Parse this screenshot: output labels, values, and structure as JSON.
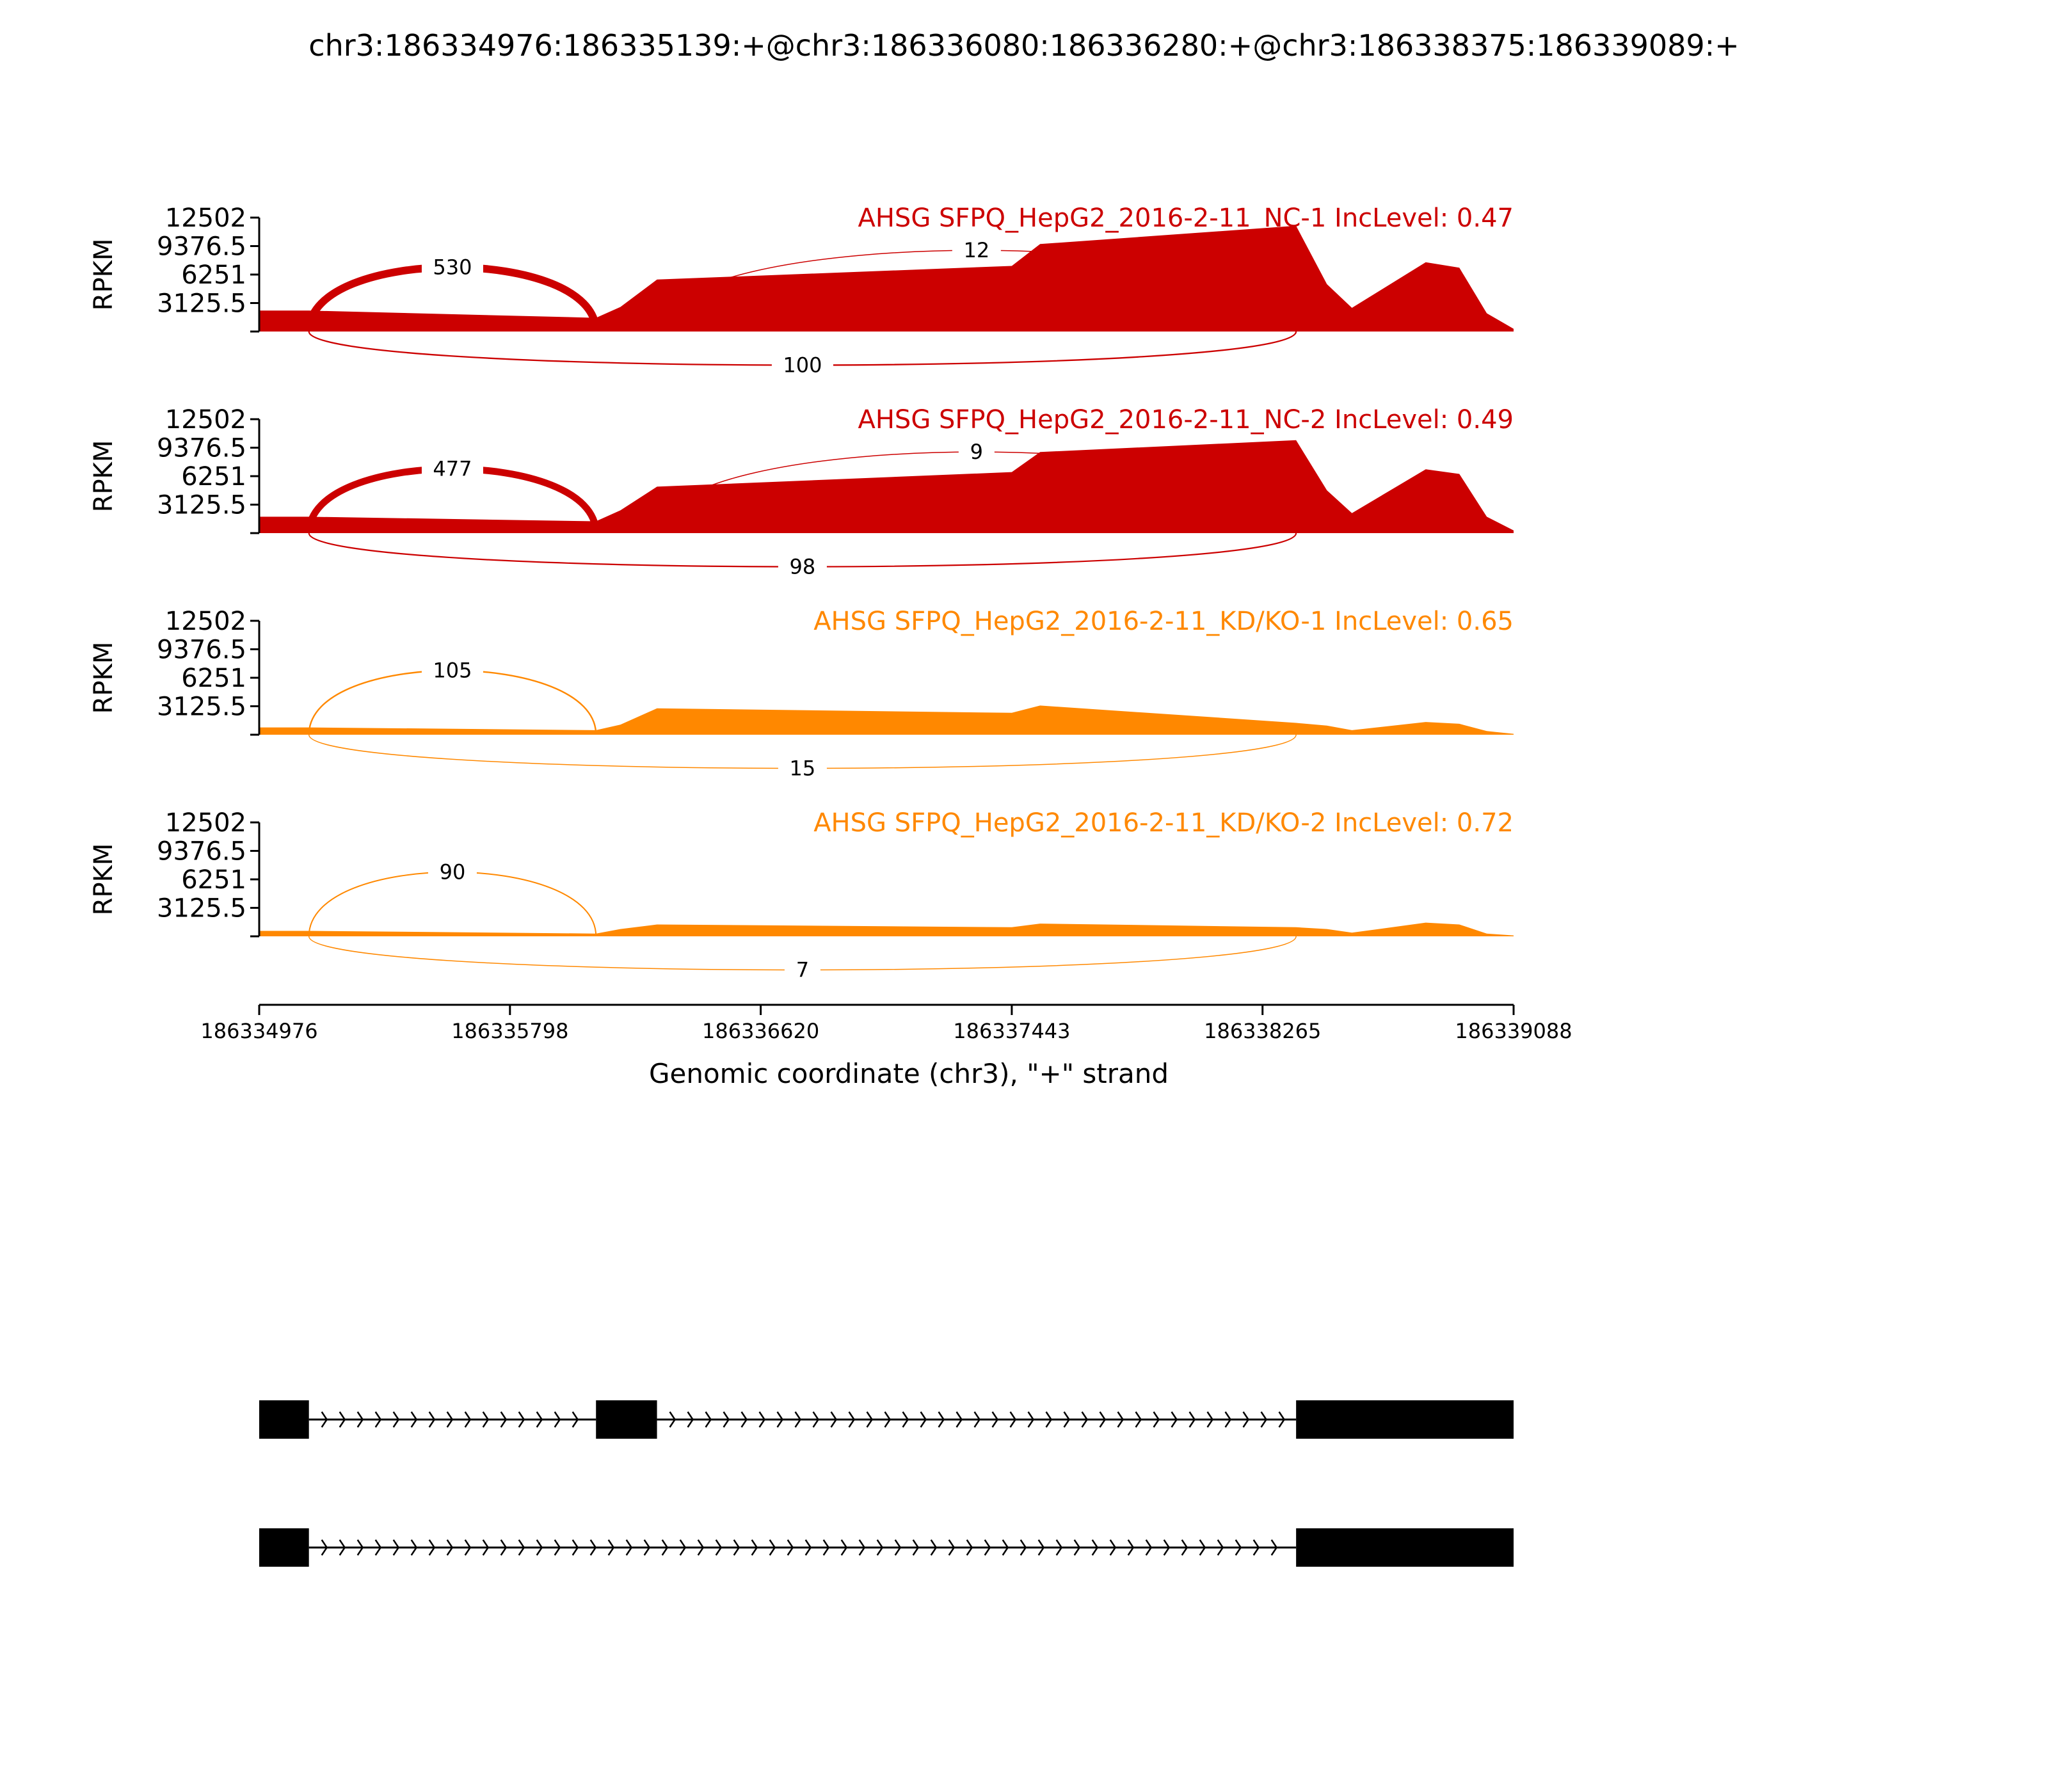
{
  "title": "chr3:186334976:186335139:+@chr3:186336080:186336280:+@chr3:186338375:186339089:+",
  "colors": {
    "nc": "#cc0000",
    "kd": "#ff8800",
    "axis": "#000000",
    "gene": "#000000"
  },
  "chart_data": {
    "type": "sashimi",
    "title": "chr3:186334976:186335139:+@chr3:186336080:186336280:+@chr3:186338375:186339089:+",
    "xlabel": "Genomic coordinate (chr3), \"+\" strand",
    "ylabel": "RPKM",
    "xlim": [
      186334976,
      186339088
    ],
    "xticks": [
      186334976,
      186335798,
      186336620,
      186337443,
      186338265,
      186339088
    ],
    "xtick_labels": [
      "186334976",
      "186335798",
      "186336620",
      "186337443",
      "186338265",
      "186339088"
    ],
    "ylim": [
      0,
      12502
    ],
    "yticks": [
      3125.5,
      6251,
      9376.5,
      12502
    ],
    "ytick_labels": [
      "3125.5",
      "6251",
      "9376.5",
      "12502"
    ],
    "tracks": [
      {
        "label": "AHSG SFPQ_HepG2_2016-2-11_NC-1 IncLevel: 0.47",
        "group": "nc",
        "coverage": [
          [
            186334976,
            2300
          ],
          [
            186335139,
            2300
          ],
          [
            186336080,
            1500
          ],
          [
            186336160,
            2700
          ],
          [
            186336280,
            5700
          ],
          [
            186337443,
            7200
          ],
          [
            186337536,
            9600
          ],
          [
            186338375,
            11600
          ],
          [
            186338476,
            5200
          ],
          [
            186338558,
            2600
          ],
          [
            186338800,
            7600
          ],
          [
            186338910,
            7000
          ],
          [
            186339000,
            2000
          ],
          [
            186339088,
            300
          ]
        ],
        "junctions": [
          {
            "start": 186335139,
            "end": 186336080,
            "count": 530,
            "side": "above"
          },
          {
            "start": 186336280,
            "end": 186338375,
            "count": 12,
            "side": "above"
          },
          {
            "start": 186335139,
            "end": 186338375,
            "count": 100,
            "side": "below"
          }
        ]
      },
      {
        "label": "AHSG SFPQ_HepG2_2016-2-11_NC-2 IncLevel: 0.49",
        "group": "nc",
        "coverage": [
          [
            186334976,
            1800
          ],
          [
            186335139,
            1800
          ],
          [
            186336080,
            1300
          ],
          [
            186336160,
            2500
          ],
          [
            186336280,
            5100
          ],
          [
            186337443,
            6700
          ],
          [
            186337536,
            8900
          ],
          [
            186338375,
            10200
          ],
          [
            186338476,
            4700
          ],
          [
            186338558,
            2200
          ],
          [
            186338800,
            7000
          ],
          [
            186338910,
            6500
          ],
          [
            186339000,
            1800
          ],
          [
            186339088,
            300
          ]
        ],
        "junctions": [
          {
            "start": 186335139,
            "end": 186336080,
            "count": 477,
            "side": "above"
          },
          {
            "start": 186336280,
            "end": 186338375,
            "count": 9,
            "side": "above"
          },
          {
            "start": 186335139,
            "end": 186338375,
            "count": 98,
            "side": "below"
          }
        ]
      },
      {
        "label": "AHSG SFPQ_HepG2_2016-2-11_KD/KO-1 IncLevel: 0.65",
        "group": "kd",
        "coverage": [
          [
            186334976,
            800
          ],
          [
            186335139,
            800
          ],
          [
            186336080,
            500
          ],
          [
            186336160,
            1100
          ],
          [
            186336280,
            2900
          ],
          [
            186337443,
            2400
          ],
          [
            186337536,
            3200
          ],
          [
            186338375,
            1300
          ],
          [
            186338476,
            1000
          ],
          [
            186338558,
            500
          ],
          [
            186338800,
            1400
          ],
          [
            186338910,
            1200
          ],
          [
            186339000,
            400
          ],
          [
            186339088,
            100
          ]
        ],
        "junctions": [
          {
            "start": 186335139,
            "end": 186336080,
            "count": 105,
            "side": "above"
          },
          {
            "start": 186335139,
            "end": 186338375,
            "count": 15,
            "side": "below"
          }
        ]
      },
      {
        "label": "AHSG SFPQ_HepG2_2016-2-11_KD/KO-2 IncLevel: 0.72",
        "group": "kd",
        "coverage": [
          [
            186334976,
            600
          ],
          [
            186335139,
            600
          ],
          [
            186336080,
            300
          ],
          [
            186336160,
            800
          ],
          [
            186336280,
            1300
          ],
          [
            186337443,
            1000
          ],
          [
            186337536,
            1400
          ],
          [
            186338375,
            1000
          ],
          [
            186338476,
            800
          ],
          [
            186338558,
            400
          ],
          [
            186338800,
            1500
          ],
          [
            186338910,
            1300
          ],
          [
            186339000,
            300
          ],
          [
            186339088,
            100
          ]
        ],
        "junctions": [
          {
            "start": 186335139,
            "end": 186336080,
            "count": 90,
            "side": "above"
          },
          {
            "start": 186335139,
            "end": 186338375,
            "count": 7,
            "side": "below"
          }
        ]
      }
    ],
    "exons": [
      [
        186334976,
        186335139
      ],
      [
        186336080,
        186336280
      ],
      [
        186338375,
        186339089
      ]
    ],
    "isoforms": [
      {
        "exons": [
          [
            186334976,
            186335139
          ],
          [
            186336080,
            186336280
          ],
          [
            186338375,
            186339089
          ]
        ]
      },
      {
        "exons": [
          [
            186334976,
            186335139
          ],
          [
            186338375,
            186339089
          ]
        ]
      }
    ]
  }
}
